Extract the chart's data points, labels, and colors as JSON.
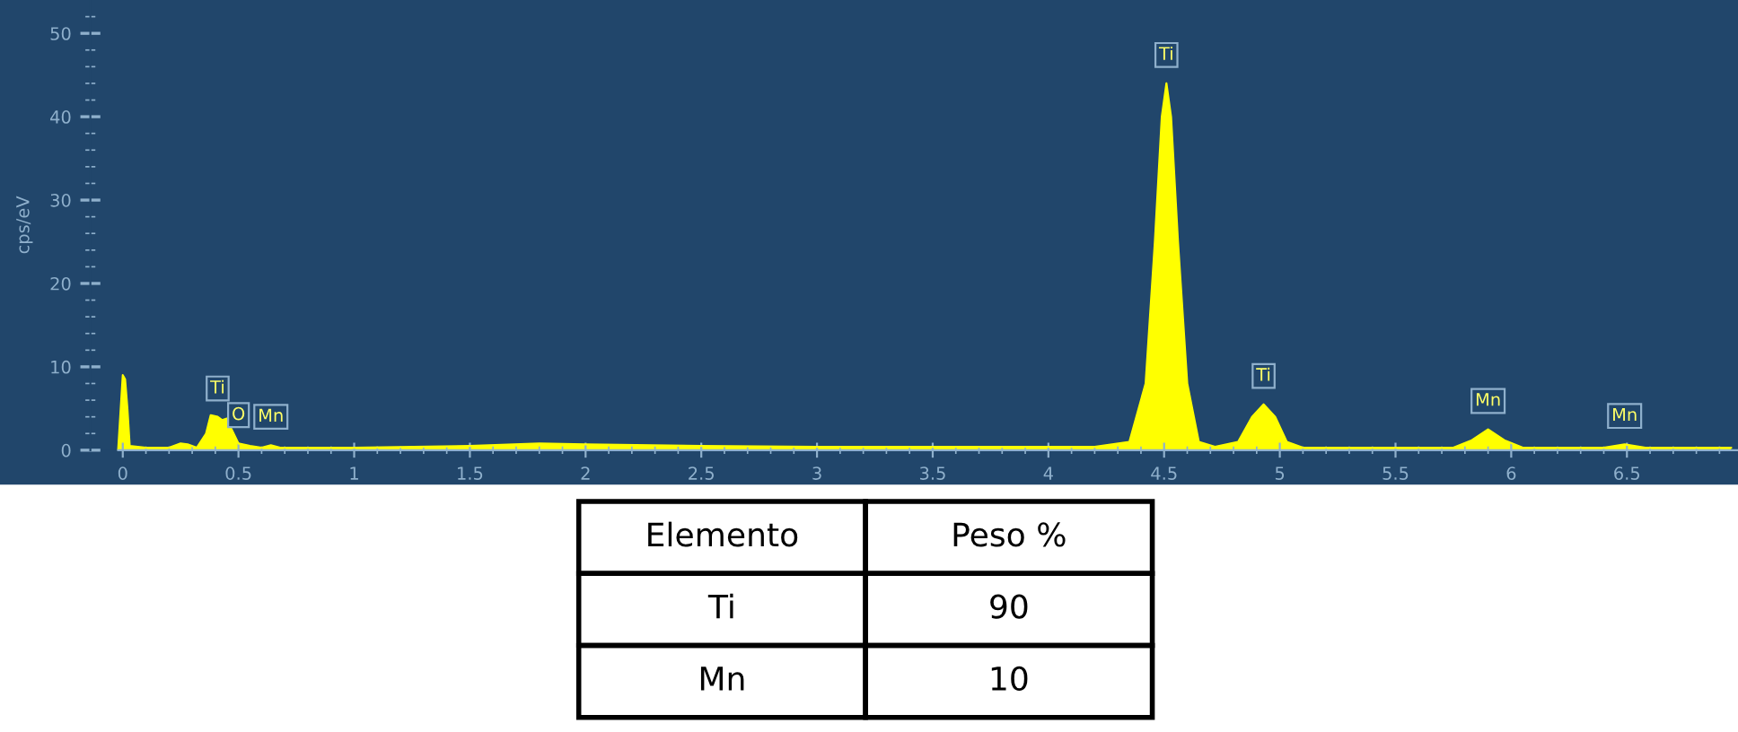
{
  "chart_data": [
    {
      "type": "area",
      "ylabel": "cps/eV",
      "color": "#ffff00",
      "x": [
        -0.02,
        0.0,
        0.01,
        0.02,
        0.03,
        0.1,
        0.2,
        0.25,
        0.28,
        0.32,
        0.36,
        0.38,
        0.41,
        0.43,
        0.45,
        0.47,
        0.5,
        0.55,
        0.6,
        0.64,
        0.68,
        1.0,
        1.5,
        1.8,
        2.0,
        2.5,
        3.0,
        3.5,
        4.2,
        4.35,
        4.42,
        4.46,
        4.49,
        4.51,
        4.53,
        4.56,
        4.6,
        4.65,
        4.72,
        4.82,
        4.88,
        4.93,
        4.98,
        5.03,
        5.1,
        5.75,
        5.83,
        5.9,
        5.97,
        6.05,
        6.4,
        6.49,
        6.58,
        6.95
      ],
      "values": [
        0,
        9,
        8.5,
        5,
        0.5,
        0.3,
        0.3,
        0.8,
        0.7,
        0.3,
        2,
        4.2,
        4,
        3.6,
        3.8,
        2.5,
        0.8,
        0.5,
        0.3,
        0.6,
        0.3,
        0.3,
        0.5,
        0.8,
        0.7,
        0.5,
        0.4,
        0.4,
        0.4,
        1,
        8,
        25,
        40,
        44,
        40,
        25,
        8,
        1,
        0.4,
        1,
        4,
        5.5,
        4,
        1,
        0.3,
        0.3,
        1.2,
        2.5,
        1.2,
        0.3,
        0.3,
        0.7,
        0.3,
        0.3
      ],
      "xlim": [
        -0.14,
        6.98
      ],
      "ylim": [
        0,
        54
      ],
      "xticks": [
        0,
        0.5,
        1,
        1.5,
        2,
        2.5,
        3,
        3.5,
        4,
        4.5,
        5,
        5.5,
        6,
        6.5
      ],
      "yticks": [
        0,
        10,
        20,
        30,
        40,
        50
      ],
      "grid": false,
      "annotations": [
        {
          "text": "Ti",
          "x": 0.41,
          "y": 4
        },
        {
          "text": "O",
          "x": 0.5,
          "y": 0.8
        },
        {
          "text": "Mn",
          "x": 0.64,
          "y": 0.6
        },
        {
          "text": "Ti",
          "x": 4.51,
          "y": 44
        },
        {
          "text": "Ti",
          "x": 4.93,
          "y": 5.5
        },
        {
          "text": "Mn",
          "x": 5.9,
          "y": 2.5
        },
        {
          "text": "Mn",
          "x": 6.49,
          "y": 0.7
        }
      ]
    },
    {
      "type": "other",
      "annotations": [
        "Elemento",
        "Peso %",
        "Ti",
        "90",
        "Mn",
        "10"
      ]
    }
  ]
}
